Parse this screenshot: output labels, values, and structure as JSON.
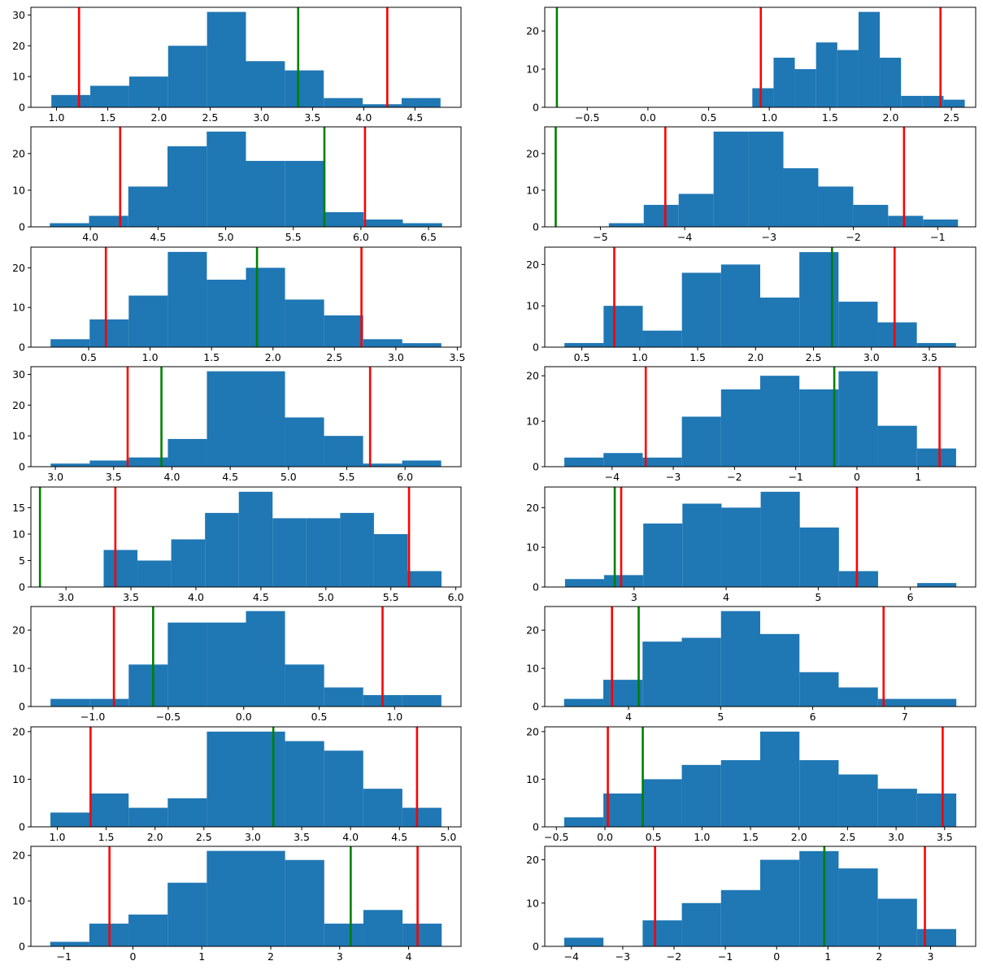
{
  "chart_data": [
    {
      "type": "histogram",
      "bin_edges": [
        0.95,
        1.33,
        1.71,
        2.09,
        2.47,
        2.85,
        3.23,
        3.61,
        3.99,
        4.37,
        4.75
      ],
      "counts": [
        4,
        7,
        10,
        20,
        31,
        15,
        12,
        3,
        1,
        3
      ],
      "xlim": [
        0.75,
        4.95
      ],
      "ylim": [
        0,
        32.5
      ],
      "xticks": [
        1.0,
        1.5,
        2.0,
        2.5,
        3.0,
        3.5,
        4.0,
        4.5
      ],
      "xtick_labels": [
        "1.0",
        "1.5",
        "2.0",
        "2.5",
        "3.0",
        "3.5",
        "4.0",
        "4.5"
      ],
      "yticks": [
        0,
        10,
        20,
        30
      ],
      "ytick_labels": [
        "0",
        "10",
        "20",
        "30"
      ],
      "red_lines": [
        1.22,
        4.23
      ],
      "green_lines": [
        3.36
      ]
    },
    {
      "type": "histogram",
      "bin_edges": [
        0.86,
        1.035,
        1.21,
        1.385,
        1.56,
        1.735,
        1.91,
        2.085,
        2.26,
        2.435,
        2.61
      ],
      "counts": [
        5,
        13,
        10,
        17,
        15,
        25,
        13,
        3,
        3,
        2
      ],
      "xlim": [
        -0.85,
        2.7
      ],
      "ylim": [
        0,
        26.2
      ],
      "xticks": [
        -0.5,
        0.0,
        0.5,
        1.0,
        1.5,
        2.0,
        2.5
      ],
      "xtick_labels": [
        "−0.5",
        "0.0",
        "0.5",
        "1.0",
        "1.5",
        "2.0",
        "2.5"
      ],
      "yticks": [
        0,
        10,
        20
      ],
      "ytick_labels": [
        "0",
        "10",
        "20"
      ],
      "red_lines": [
        0.93,
        2.41
      ],
      "green_lines": [
        -0.75
      ]
    },
    {
      "type": "histogram",
      "bin_edges": [
        3.7,
        3.99,
        4.28,
        4.57,
        4.86,
        5.15,
        5.44,
        5.73,
        6.02,
        6.31,
        6.6
      ],
      "counts": [
        1,
        3,
        11,
        22,
        26,
        18,
        18,
        4,
        2,
        1
      ],
      "xlim": [
        3.56,
        6.74
      ],
      "ylim": [
        0,
        27.3
      ],
      "xticks": [
        4.0,
        4.5,
        5.0,
        5.5,
        6.0,
        6.5
      ],
      "xtick_labels": [
        "4.0",
        "4.5",
        "5.0",
        "5.5",
        "6.0",
        "6.5"
      ],
      "yticks": [
        0,
        10,
        20
      ],
      "ytick_labels": [
        "0",
        "10",
        "20"
      ],
      "red_lines": [
        4.22,
        6.03
      ],
      "green_lines": [
        5.73
      ]
    },
    {
      "type": "histogram",
      "bin_edges": [
        -4.9,
        -4.486,
        -4.072,
        -3.658,
        -3.244,
        -2.83,
        -2.416,
        -2.002,
        -1.588,
        -1.174,
        -0.76
      ],
      "counts": [
        1,
        6,
        9,
        26,
        26,
        16,
        11,
        6,
        3,
        2
      ],
      "xlim": [
        -5.66,
        -0.55
      ],
      "ylim": [
        0,
        27.3
      ],
      "xticks": [
        -5,
        -4,
        -3,
        -2,
        -1
      ],
      "xtick_labels": [
        "−5",
        "−4",
        "−3",
        "−2",
        "−1"
      ],
      "yticks": [
        0,
        10,
        20
      ],
      "ytick_labels": [
        "0",
        "10",
        "20"
      ],
      "red_lines": [
        -4.23,
        -1.4
      ],
      "green_lines": [
        -5.53
      ]
    },
    {
      "type": "histogram",
      "bin_edges": [
        0.19,
        0.508,
        0.826,
        1.144,
        1.462,
        1.78,
        2.098,
        2.416,
        2.734,
        3.052,
        3.37
      ],
      "counts": [
        2,
        7,
        13,
        24,
        17,
        20,
        12,
        8,
        2,
        1
      ],
      "xlim": [
        0.03,
        3.53
      ],
      "ylim": [
        0,
        25.2
      ],
      "xticks": [
        0.5,
        1.0,
        1.5,
        2.0,
        2.5,
        3.0,
        3.5
      ],
      "xtick_labels": [
        "0.5",
        "1.0",
        "1.5",
        "2.0",
        "2.5",
        "3.0",
        "3.5"
      ],
      "yticks": [
        0,
        10,
        20
      ],
      "ytick_labels": [
        "0",
        "10",
        "20"
      ],
      "red_lines": [
        0.64,
        2.72
      ],
      "green_lines": [
        1.87
      ]
    },
    {
      "type": "histogram",
      "bin_edges": [
        0.35,
        0.688,
        1.026,
        1.364,
        1.702,
        2.04,
        2.378,
        2.716,
        3.054,
        3.392,
        3.73
      ],
      "counts": [
        1,
        10,
        4,
        18,
        20,
        12,
        23,
        11,
        6,
        1
      ],
      "xlim": [
        0.18,
        3.9
      ],
      "ylim": [
        0,
        24.2
      ],
      "xticks": [
        0.5,
        1.0,
        1.5,
        2.0,
        2.5,
        3.0,
        3.5
      ],
      "xtick_labels": [
        "0.5",
        "1.0",
        "1.5",
        "2.0",
        "2.5",
        "3.0",
        "3.5"
      ],
      "yticks": [
        0,
        10,
        20
      ],
      "ytick_labels": [
        "0",
        "10",
        "20"
      ],
      "red_lines": [
        0.78,
        3.2
      ],
      "green_lines": [
        2.66
      ]
    },
    {
      "type": "histogram",
      "bin_edges": [
        2.96,
        3.295,
        3.63,
        3.965,
        4.3,
        4.635,
        4.97,
        5.305,
        5.64,
        5.975,
        6.31
      ],
      "counts": [
        1,
        2,
        3,
        9,
        31,
        31,
        16,
        10,
        1,
        2
      ],
      "xlim": [
        2.79,
        6.48
      ],
      "ylim": [
        0,
        32.5
      ],
      "xticks": [
        3.0,
        3.5,
        4.0,
        4.5,
        5.0,
        5.5,
        6.0
      ],
      "xtick_labels": [
        "3.0",
        "3.5",
        "4.0",
        "4.5",
        "5.0",
        "5.5",
        "6.0"
      ],
      "yticks": [
        0,
        10,
        20,
        30
      ],
      "ytick_labels": [
        "0",
        "10",
        "20",
        "30"
      ],
      "red_lines": [
        3.62,
        5.7
      ],
      "green_lines": [
        3.91
      ]
    },
    {
      "type": "histogram",
      "bin_edges": [
        -4.78,
        -4.14,
        -3.5,
        -2.86,
        -2.22,
        -1.58,
        -0.94,
        -0.3,
        0.34,
        0.98,
        1.62
      ],
      "counts": [
        2,
        3,
        2,
        11,
        17,
        20,
        17,
        21,
        9,
        4
      ],
      "xlim": [
        -5.1,
        1.94
      ],
      "ylim": [
        0,
        22.0
      ],
      "xticks": [
        -4,
        -3,
        -2,
        -1,
        0,
        1
      ],
      "xtick_labels": [
        "−4",
        "−3",
        "−2",
        "−1",
        "0",
        "1"
      ],
      "yticks": [
        0,
        10,
        20
      ],
      "ytick_labels": [
        "0",
        "10",
        "20"
      ],
      "red_lines": [
        -3.45,
        1.35
      ],
      "green_lines": [
        -0.37
      ]
    },
    {
      "type": "histogram",
      "bin_edges": [
        3.29,
        3.55,
        3.81,
        4.07,
        4.33,
        4.59,
        4.85,
        5.11,
        5.37,
        5.63,
        5.89
      ],
      "counts": [
        7,
        5,
        9,
        14,
        18,
        13,
        13,
        14,
        10,
        3
      ],
      "xlim": [
        2.73,
        6.04
      ],
      "ylim": [
        0,
        18.9
      ],
      "xticks": [
        3.0,
        3.5,
        4.0,
        4.5,
        5.0,
        5.5,
        6.0
      ],
      "xtick_labels": [
        "3.0",
        "3.5",
        "4.0",
        "4.5",
        "5.0",
        "5.5",
        "6.0"
      ],
      "yticks": [
        0,
        5,
        10,
        15
      ],
      "ytick_labels": [
        "0",
        "5",
        "10",
        "15"
      ],
      "red_lines": [
        3.38,
        5.64
      ],
      "green_lines": [
        2.8
      ]
    },
    {
      "type": "histogram",
      "bin_edges": [
        2.25,
        2.675,
        3.1,
        3.525,
        3.95,
        4.375,
        4.8,
        5.225,
        5.65,
        6.075,
        6.5
      ],
      "counts": [
        2,
        3,
        16,
        21,
        20,
        24,
        15,
        4,
        0,
        1
      ],
      "xlim": [
        2.03,
        6.71
      ],
      "ylim": [
        0,
        25.2
      ],
      "xticks": [
        3,
        4,
        5,
        6
      ],
      "xtick_labels": [
        "3",
        "4",
        "5",
        "6"
      ],
      "yticks": [
        0,
        10,
        20
      ],
      "ytick_labels": [
        "0",
        "10",
        "20"
      ],
      "red_lines": [
        2.86,
        5.42
      ],
      "green_lines": [
        2.79
      ]
    },
    {
      "type": "histogram",
      "bin_edges": [
        -1.28,
        -1.021,
        -0.762,
        -0.503,
        -0.244,
        0.015,
        0.274,
        0.533,
        0.792,
        1.051,
        1.31
      ],
      "counts": [
        2,
        2,
        11,
        22,
        22,
        25,
        11,
        5,
        3,
        3
      ],
      "xlim": [
        -1.41,
        1.44
      ],
      "ylim": [
        0,
        26.2
      ],
      "xticks": [
        -1.0,
        -0.5,
        0.0,
        0.5,
        1.0
      ],
      "xtick_labels": [
        "−1.0",
        "−0.5",
        "0.0",
        "0.5",
        "1.0"
      ],
      "yticks": [
        0,
        10,
        20
      ],
      "ytick_labels": [
        "0",
        "10",
        "20"
      ],
      "red_lines": [
        -0.86,
        0.92
      ],
      "green_lines": [
        -0.6
      ]
    },
    {
      "type": "histogram",
      "bin_edges": [
        3.3,
        3.726,
        4.152,
        4.578,
        5.004,
        5.43,
        5.856,
        6.282,
        6.708,
        7.134,
        7.56
      ],
      "counts": [
        2,
        7,
        17,
        18,
        25,
        19,
        9,
        5,
        2,
        2
      ],
      "xlim": [
        3.09,
        7.77
      ],
      "ylim": [
        0,
        26.2
      ],
      "xticks": [
        4,
        5,
        6,
        7
      ],
      "xtick_labels": [
        "4",
        "5",
        "6",
        "7"
      ],
      "yticks": [
        0,
        10,
        20
      ],
      "ytick_labels": [
        "0",
        "10",
        "20"
      ],
      "red_lines": [
        3.82,
        6.77
      ],
      "green_lines": [
        4.11
      ]
    },
    {
      "type": "histogram",
      "bin_edges": [
        0.93,
        1.33,
        1.73,
        2.13,
        2.53,
        2.93,
        3.33,
        3.73,
        4.13,
        4.53,
        4.93
      ],
      "counts": [
        3,
        7,
        4,
        6,
        20,
        20,
        18,
        16,
        8,
        4
      ],
      "xlim": [
        0.73,
        5.13
      ],
      "ylim": [
        0,
        21.0
      ],
      "xticks": [
        1.0,
        1.5,
        2.0,
        2.5,
        3.0,
        3.5,
        4.0,
        4.5,
        5.0
      ],
      "xtick_labels": [
        "1.0",
        "1.5",
        "2.0",
        "2.5",
        "3.0",
        "3.5",
        "4.0",
        "4.5",
        "5.0"
      ],
      "yticks": [
        0,
        10,
        20
      ],
      "ytick_labels": [
        "0",
        "10",
        "20"
      ],
      "red_lines": [
        1.34,
        4.68
      ],
      "green_lines": [
        3.21
      ]
    },
    {
      "type": "histogram",
      "bin_edges": [
        -0.42,
        -0.016,
        0.388,
        0.792,
        1.196,
        1.6,
        2.004,
        2.408,
        2.812,
        3.216,
        3.62
      ],
      "counts": [
        2,
        7,
        10,
        13,
        14,
        20,
        14,
        11,
        8,
        7
      ],
      "xlim": [
        -0.62,
        3.82
      ],
      "ylim": [
        0,
        21.0
      ],
      "xticks": [
        -0.5,
        0.0,
        0.5,
        1.0,
        1.5,
        2.0,
        2.5,
        3.0,
        3.5
      ],
      "xtick_labels": [
        "−0.5",
        "0.0",
        "0.5",
        "1.0",
        "1.5",
        "2.0",
        "2.5",
        "3.0",
        "3.5"
      ],
      "yticks": [
        0,
        10,
        20
      ],
      "ytick_labels": [
        "0",
        "10",
        "20"
      ],
      "red_lines": [
        0.03,
        3.48
      ],
      "green_lines": [
        0.39
      ]
    },
    {
      "type": "histogram",
      "bin_edges": [
        -1.2,
        -0.632,
        -0.064,
        0.504,
        1.072,
        1.64,
        2.208,
        2.776,
        3.344,
        3.912,
        4.48
      ],
      "counts": [
        1,
        5,
        7,
        14,
        21,
        21,
        19,
        5,
        8,
        5
      ],
      "xlim": [
        -1.48,
        4.76
      ],
      "ylim": [
        0,
        22.0
      ],
      "xticks": [
        -1,
        0,
        1,
        2,
        3,
        4
      ],
      "xtick_labels": [
        "−1",
        "0",
        "1",
        "2",
        "3",
        "4"
      ],
      "yticks": [
        0,
        10,
        20
      ],
      "ytick_labels": [
        "0",
        "10",
        "20"
      ],
      "red_lines": [
        -0.34,
        4.13
      ],
      "green_lines": [
        3.16
      ]
    },
    {
      "type": "histogram",
      "bin_edges": [
        -4.14,
        -3.376,
        -2.612,
        -1.848,
        -1.084,
        -0.32,
        0.444,
        1.208,
        1.972,
        2.736,
        3.5
      ],
      "counts": [
        2,
        0,
        6,
        10,
        13,
        20,
        22,
        18,
        11,
        4
      ],
      "xlim": [
        -4.52,
        3.88
      ],
      "ylim": [
        0,
        23.1
      ],
      "xticks": [
        -4,
        -3,
        -2,
        -1,
        0,
        1,
        2,
        3
      ],
      "xtick_labels": [
        "−4",
        "−3",
        "−2",
        "−1",
        "0",
        "1",
        "2",
        "3"
      ],
      "yticks": [
        0,
        10,
        20
      ],
      "ytick_labels": [
        "0",
        "10",
        "20"
      ],
      "red_lines": [
        -2.37,
        2.89
      ],
      "green_lines": [
        0.93
      ]
    }
  ],
  "colors": {
    "bars": "#1f77b4",
    "red_line": "#ff0000",
    "green_line": "#008000",
    "axes": "#000000",
    "background": "#ffffff"
  }
}
